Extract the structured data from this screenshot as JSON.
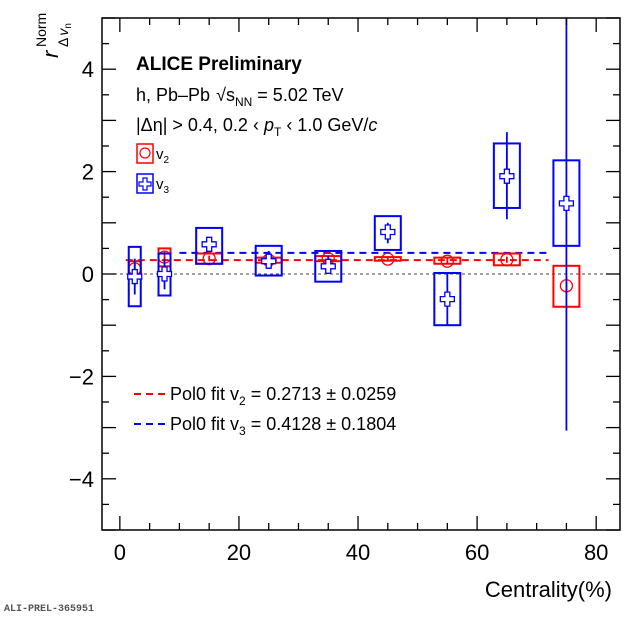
{
  "chart_data": {
    "type": "scatter",
    "title": "ALICE Preliminary",
    "annotations": [
      "h, Pb–Pb",
      "√s",
      "NN",
      " = 5.02 TeV",
      "|Δη| > 0.4, 0.2 ‹ ",
      "p",
      "T",
      " ‹ 1.0 GeV/",
      "c"
    ],
    "xlabel": "Centrality(%)",
    "ylabel": {
      "main": "r",
      "sup": "Norm",
      "sub": "Δ",
      "sub_v": "v",
      "sub_n": "n"
    },
    "xlim": [
      -3,
      84
    ],
    "ylim": [
      -5,
      5
    ],
    "xticks": [
      0,
      20,
      40,
      60,
      80
    ],
    "yticks": [
      -4,
      -2,
      0,
      2,
      4
    ],
    "ytick_labels": [
      "−4",
      "−2",
      "0",
      "2",
      "4"
    ],
    "grid": false,
    "zero_line": true,
    "legend_placement": "top-left",
    "series": [
      {
        "name": "v",
        "name_sub": "2",
        "color": "#ff0000",
        "marker": "open-circle",
        "x": [
          2.5,
          7.5,
          15,
          25,
          35,
          45,
          55,
          65,
          75
        ],
        "y": [
          0.1,
          0.33,
          0.3,
          0.27,
          0.3,
          0.29,
          0.25,
          0.28,
          -0.23
        ],
        "sys_low": [
          -0.06,
          0.15,
          0.2,
          0.22,
          0.25,
          0.26,
          0.2,
          0.17,
          -0.64
        ],
        "sys_high": [
          0.25,
          0.5,
          0.4,
          0.32,
          0.35,
          0.33,
          0.32,
          0.4,
          0.16
        ],
        "stat_low": [
          -0.02,
          0.2,
          0.25,
          0.22,
          0.24,
          0.26,
          0.21,
          0.22,
          -0.4
        ],
        "stat_high": [
          0.22,
          0.45,
          0.36,
          0.32,
          0.36,
          0.33,
          0.3,
          0.34,
          -0.05
        ]
      },
      {
        "name": "v",
        "name_sub": "3",
        "color": "#0000ff",
        "marker": "open-cross",
        "x": [
          2.5,
          7.5,
          15,
          25,
          35,
          45,
          55,
          65,
          75
        ],
        "y": [
          -0.05,
          0.0,
          0.58,
          0.25,
          0.15,
          0.82,
          -0.49,
          1.91,
          1.38
        ],
        "sys_low": [
          -0.63,
          -0.42,
          0.2,
          -0.03,
          -0.15,
          0.47,
          -1.0,
          1.29,
          0.55
        ],
        "sys_high": [
          0.53,
          0.4,
          0.9,
          0.55,
          0.45,
          1.13,
          0.02,
          2.55,
          2.22
        ],
        "stat_low": [
          -0.4,
          -0.3,
          0.45,
          0.1,
          0.0,
          0.6,
          -1.0,
          1.07,
          -3.06
        ],
        "stat_high": [
          0.3,
          0.3,
          0.7,
          0.45,
          0.35,
          1.0,
          0.02,
          2.77,
          5.0
        ]
      }
    ],
    "fits": [
      {
        "label_pre": "Pol0 fit v",
        "label_sub": "2",
        "label_post": " = 0.2713 ± 0.0259",
        "value": 0.2713,
        "error": 0.0259,
        "color": "#ff0000",
        "x_range": [
          1,
          72
        ]
      },
      {
        "label_pre": "Pol0 fit v",
        "label_sub": "3",
        "label_post": " = 0.4128 ± 0.1804",
        "value": 0.4128,
        "error": 0.1804,
        "color": "#0000ff",
        "x_range": [
          10,
          72
        ]
      }
    ],
    "footer": "ALI-PREL-365951"
  }
}
